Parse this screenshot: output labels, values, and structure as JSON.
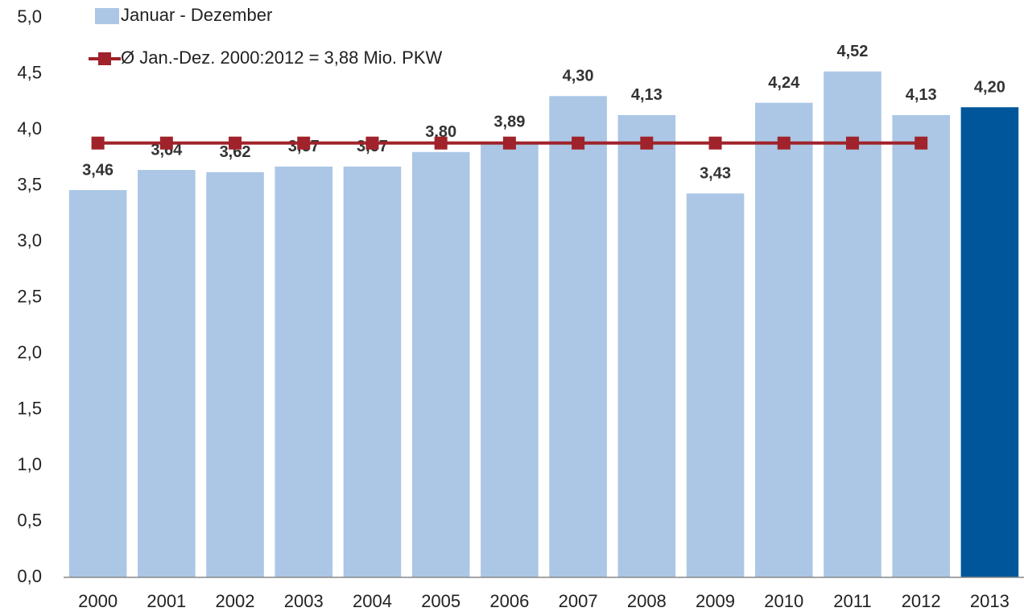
{
  "chart_data": {
    "type": "bar",
    "categories": [
      "2000",
      "2001",
      "2002",
      "2003",
      "2004",
      "2005",
      "2006",
      "2007",
      "2008",
      "2009",
      "2010",
      "2011",
      "2012",
      "2013"
    ],
    "series": [
      {
        "name": "Januar - Dezember",
        "type": "bar",
        "colors": [
          "#abc7e5",
          "#abc7e5",
          "#abc7e5",
          "#abc7e5",
          "#abc7e5",
          "#abc7e5",
          "#abc7e5",
          "#abc7e5",
          "#abc7e5",
          "#abc7e5",
          "#abc7e5",
          "#abc7e5",
          "#abc7e5",
          "#00569a"
        ],
        "values": [
          3.46,
          3.64,
          3.62,
          3.67,
          3.67,
          3.8,
          3.89,
          4.3,
          4.13,
          3.43,
          4.24,
          4.52,
          4.13,
          4.2
        ],
        "value_labels": [
          "3,46",
          "3,64",
          "3,62",
          "3,67",
          "3,67",
          "3,80",
          "3,89",
          "4,30",
          "4,13",
          "3,43",
          "4,24",
          "4,52",
          "4,13",
          "4,20"
        ]
      },
      {
        "name": "Ø Jan.-Dez. 2000:2012 = 3,88 Mio. PKW",
        "type": "line",
        "color": "#a0222a",
        "values": [
          3.88,
          3.88,
          3.88,
          3.88,
          3.88,
          3.88,
          3.88,
          3.88,
          3.88,
          3.88,
          3.88,
          3.88,
          3.88,
          null
        ]
      }
    ],
    "ylim": [
      0,
      5
    ],
    "yticks": [
      {
        "value": 0,
        "label": "0,0"
      },
      {
        "value": 0.5,
        "label": "0,5"
      },
      {
        "value": 1,
        "label": "1,0"
      },
      {
        "value": 1.5,
        "label": "1,5"
      },
      {
        "value": 2,
        "label": "2,0"
      },
      {
        "value": 2.5,
        "label": "2,5"
      },
      {
        "value": 3,
        "label": "3,0"
      },
      {
        "value": 3.5,
        "label": "3,5"
      },
      {
        "value": 4,
        "label": "4,0"
      },
      {
        "value": 4.5,
        "label": "4,5"
      },
      {
        "value": 5,
        "label": "5,0"
      }
    ],
    "grid": false
  }
}
